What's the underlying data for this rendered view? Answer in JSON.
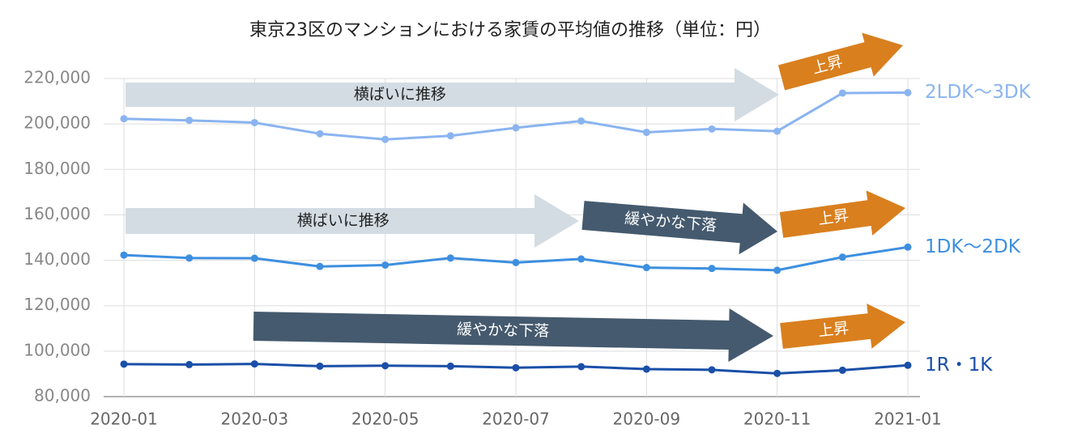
{
  "chart_data": {
    "type": "line",
    "title": "東京23区のマンションにおける家賃の平均値の推移（単位：円）",
    "categories": [
      "2020-01",
      null,
      "2020-03",
      null,
      "2020-05",
      null,
      "2020-07",
      null,
      "2020-09",
      null,
      "2020-11",
      null,
      "2021-01"
    ],
    "series": [
      {
        "name": "2LDK〜3DK",
        "color": "#8ab4f0",
        "values": [
          202300,
          201600,
          200600,
          195700,
          193200,
          194800,
          198300,
          201300,
          196300,
          197800,
          196800,
          213600,
          213800
        ]
      },
      {
        "name": "1DK〜2DK",
        "color": "#3d8fe0",
        "values": [
          142300,
          141000,
          140900,
          137300,
          137900,
          141000,
          139000,
          140600,
          136800,
          136400,
          135600,
          141400,
          145800
        ]
      },
      {
        "name": "1R・1K",
        "color": "#1a4fa8",
        "values": [
          94300,
          94100,
          94400,
          93400,
          93600,
          93400,
          92700,
          93200,
          92100,
          91800,
          90200,
          91600,
          93800
        ]
      }
    ],
    "ylim": [
      80000,
      220000
    ],
    "yticks": [
      {
        "value": 80000,
        "label": "80,000"
      },
      {
        "value": 100000,
        "label": "100,000"
      },
      {
        "value": 120000,
        "label": "120,000"
      },
      {
        "value": 140000,
        "label": "140,000"
      },
      {
        "value": 160000,
        "label": "160,000"
      },
      {
        "value": 180000,
        "label": "180,000"
      },
      {
        "value": 200000,
        "label": "200,000"
      },
      {
        "value": 220000,
        "label": "220,000"
      }
    ],
    "grid": true,
    "annotations": [
      "横ばいに推移",
      "上昇",
      "横ばいに推移",
      "緩やかな下落",
      "上昇",
      "緩やかな下落",
      "上昇"
    ]
  }
}
